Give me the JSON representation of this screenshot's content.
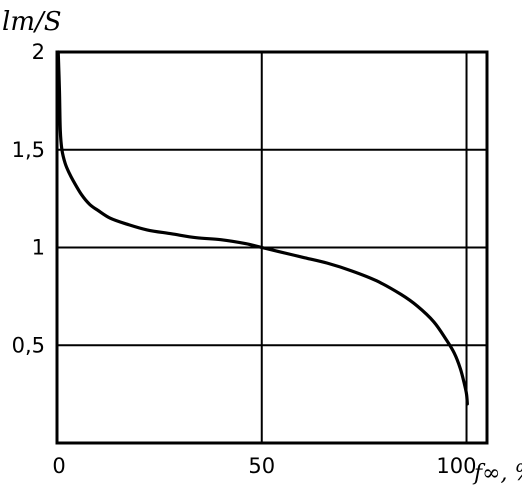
{
  "chart_data": {
    "type": "line",
    "title": "",
    "ylabel": "lт/S",
    "xlabel": "f∞, %",
    "xlim": [
      0,
      105
    ],
    "ylim": [
      0,
      2
    ],
    "grid": true,
    "x_ticks": [
      {
        "value": 0,
        "label": "0"
      },
      {
        "value": 50,
        "label": "50"
      },
      {
        "value": 100,
        "label": "100"
      }
    ],
    "y_ticks": [
      {
        "value": 2,
        "label": "2"
      },
      {
        "value": 1.5,
        "label": "1,5"
      },
      {
        "value": 1,
        "label": "1"
      },
      {
        "value": 0.5,
        "label": "0,5"
      }
    ],
    "series": [
      {
        "x": [
          0.3,
          0.6,
          0.8,
          1.2,
          2,
          3,
          4,
          6,
          8,
          10,
          13,
          17,
          22,
          28,
          34,
          40,
          46,
          50,
          54,
          60,
          66,
          72,
          78,
          84,
          88,
          92,
          95,
          97,
          98.5,
          99.5,
          100,
          100.2
        ],
        "y": [
          2.0,
          1.8,
          1.6,
          1.5,
          1.43,
          1.38,
          1.34,
          1.27,
          1.22,
          1.19,
          1.15,
          1.12,
          1.09,
          1.07,
          1.05,
          1.04,
          1.02,
          1.0,
          0.98,
          0.95,
          0.92,
          0.88,
          0.83,
          0.76,
          0.7,
          0.62,
          0.53,
          0.46,
          0.38,
          0.3,
          0.25,
          0.2
        ]
      }
    ]
  }
}
